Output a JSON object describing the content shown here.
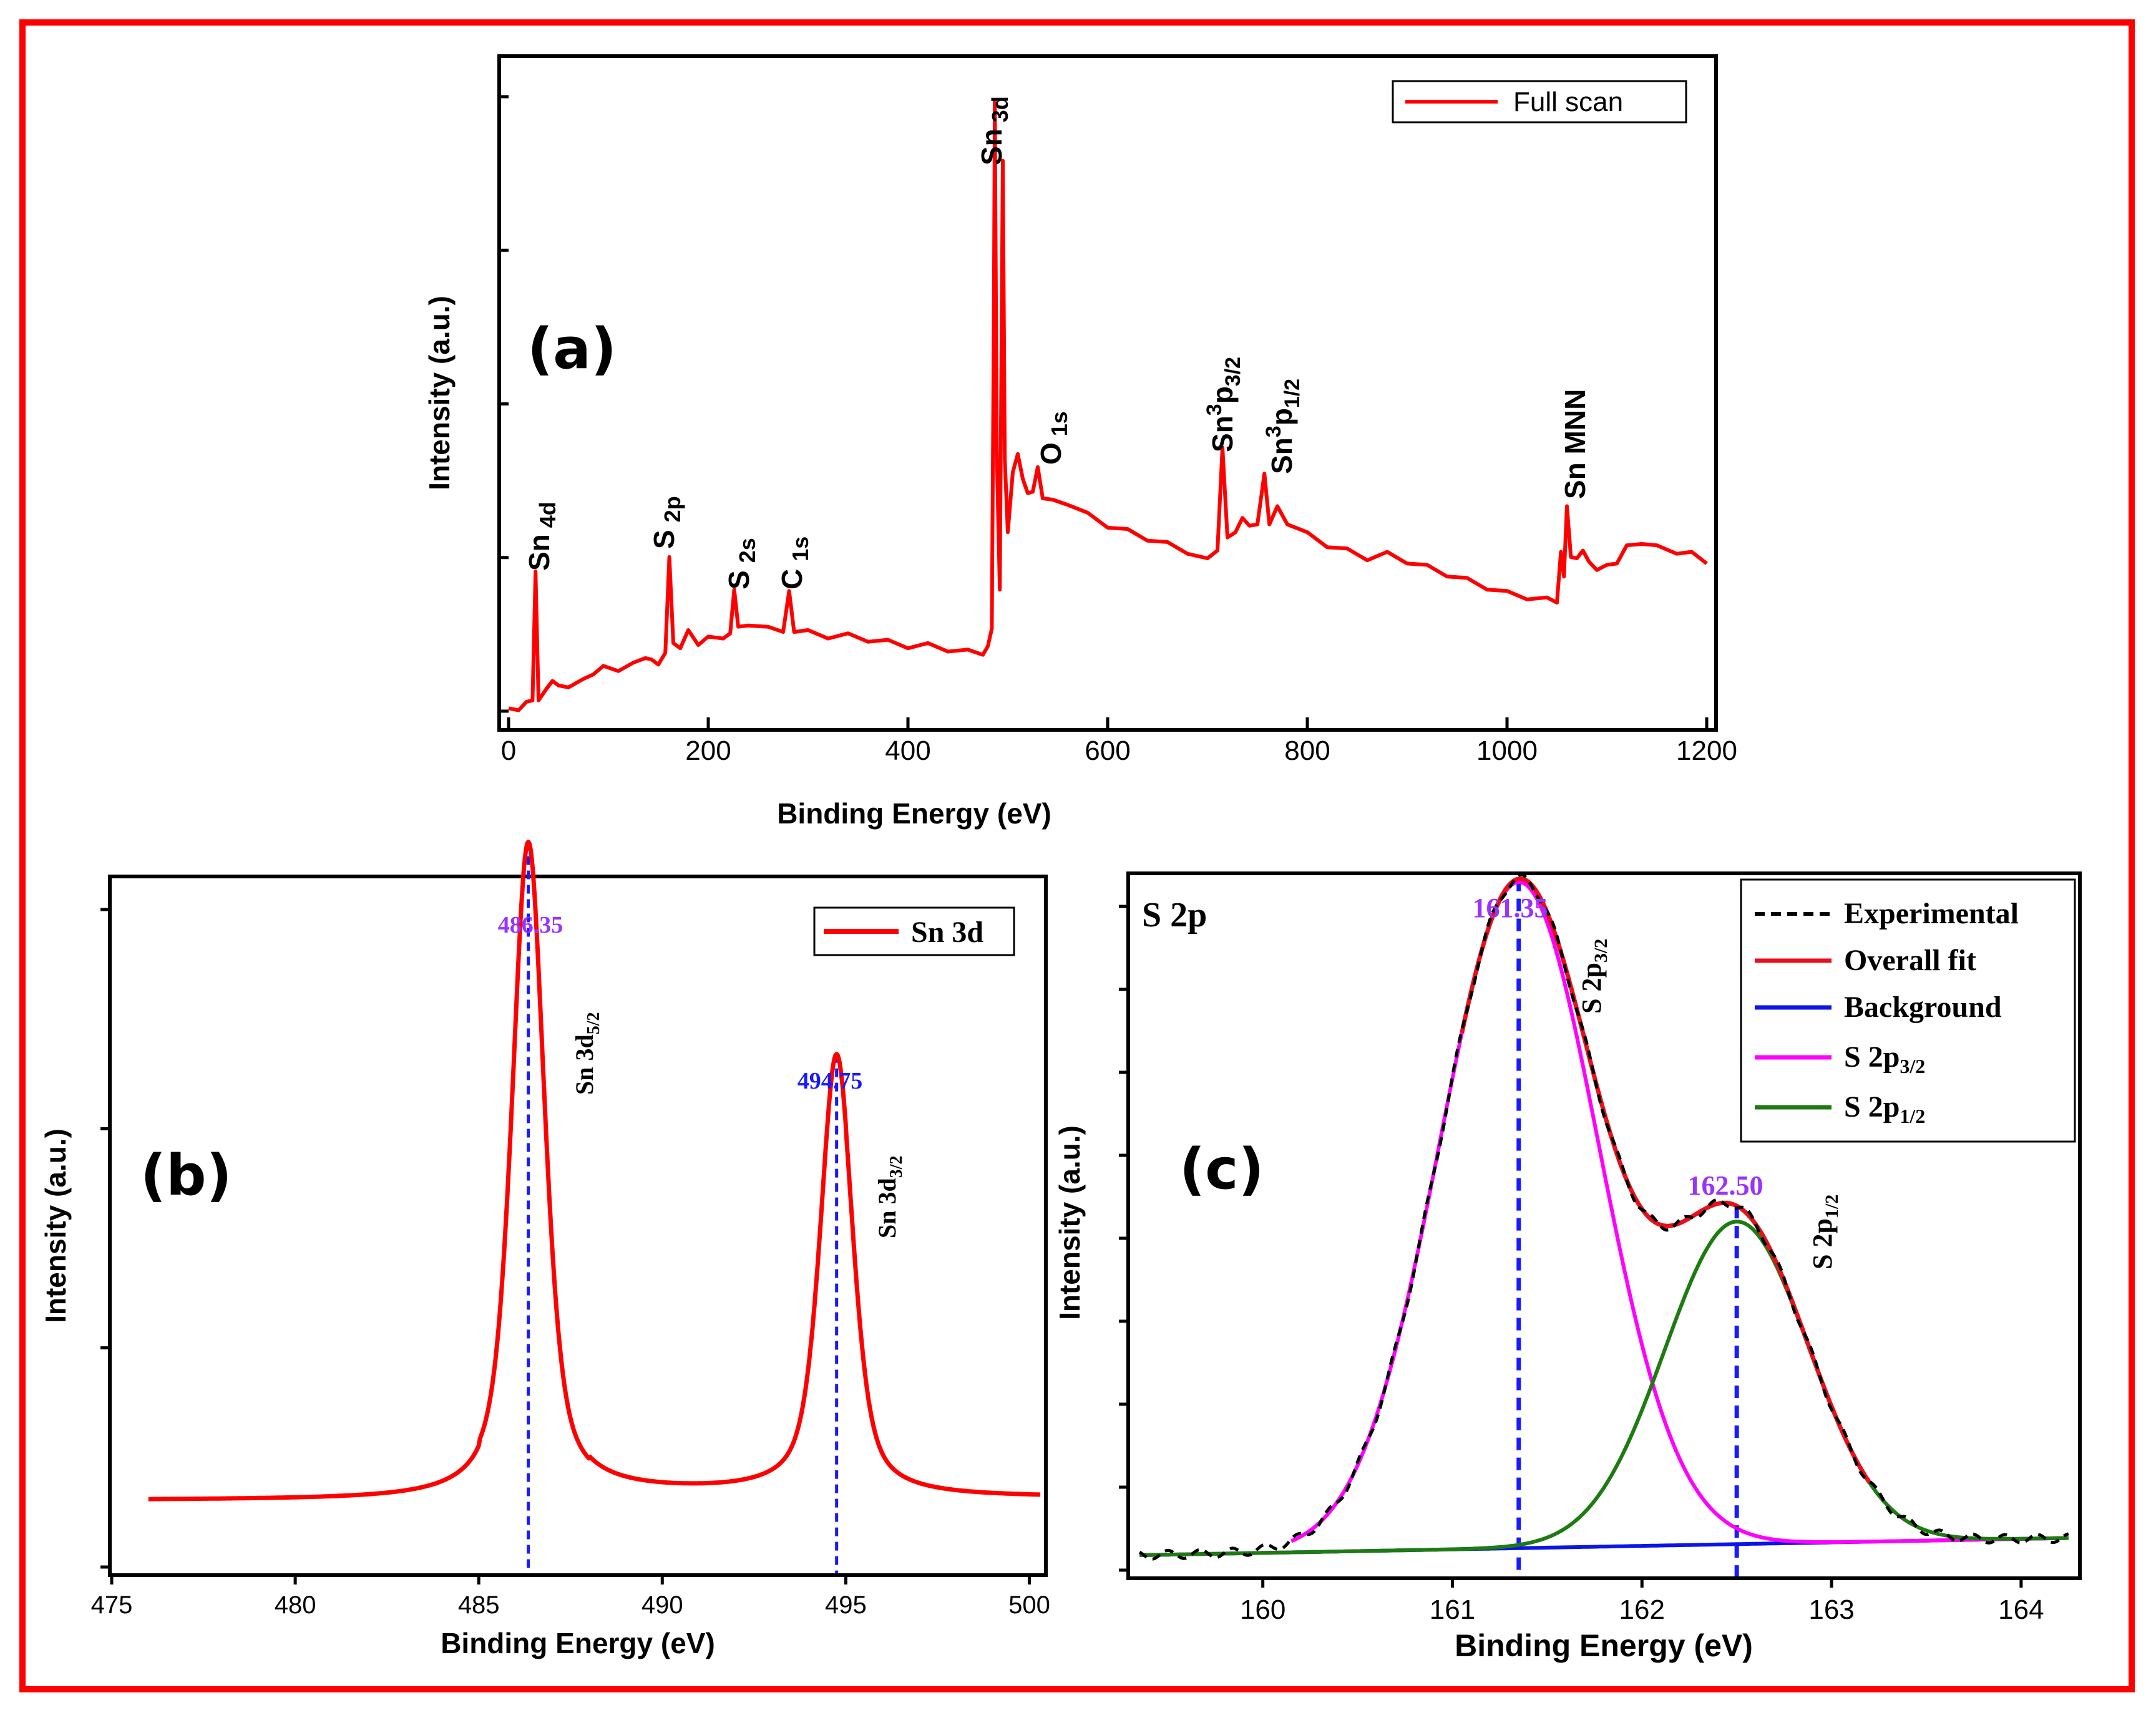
{
  "colors": {
    "frame": "#ff0000",
    "survey_line": "#ff0000",
    "fit_red": "#e8101a",
    "background_blue": "#0b16e6",
    "s2p32_magenta": "#ff00ff",
    "s2p12_green": "#1e7b12",
    "violet_label": "#9933ff",
    "blue_label": "#1a1aff"
  },
  "chart_data": [
    {
      "panel": "(a)",
      "type": "line",
      "xlabel": "Binding Energy (eV)",
      "ylabel": "Intensity (a.u.)",
      "xlim": [
        0,
        1200
      ],
      "ylim": [
        0,
        100
      ],
      "xticks": [
        0,
        200,
        400,
        600,
        800,
        1000,
        1200
      ],
      "yticks_unlabeled": true,
      "legend": {
        "label": "Full scan",
        "position": "top-right"
      },
      "series": [
        {
          "name": "Full scan",
          "points": [
            [
              0,
              1
            ],
            [
              10,
              1.5
            ],
            [
              18,
              2
            ],
            [
              24,
              3
            ],
            [
              27,
              22
            ],
            [
              30,
              3
            ],
            [
              38,
              4
            ],
            [
              44,
              6
            ],
            [
              50,
              4.5
            ],
            [
              60,
              5
            ],
            [
              75,
              5.5
            ],
            [
              85,
              7
            ],
            [
              95,
              7.5
            ],
            [
              110,
              7.5
            ],
            [
              125,
              8
            ],
            [
              137,
              9.5
            ],
            [
              143,
              8.5
            ],
            [
              150,
              8.5
            ],
            [
              157,
              9.5
            ],
            [
              161,
              25
            ],
            [
              165,
              11
            ],
            [
              172,
              11
            ],
            [
              180,
              13
            ],
            [
              190,
              11.5
            ],
            [
              200,
              12
            ],
            [
              215,
              12.5
            ],
            [
              222,
              12.5
            ],
            [
              226,
              20
            ],
            [
              230,
              13.5
            ],
            [
              240,
              14.5
            ],
            [
              260,
              13.5
            ],
            [
              275,
              13.5
            ],
            [
              281,
              19
            ],
            [
              286,
              13.5
            ],
            [
              300,
              13
            ],
            [
              320,
              12.5
            ],
            [
              340,
              12.5
            ],
            [
              360,
              12
            ],
            [
              380,
              11.5
            ],
            [
              400,
              11
            ],
            [
              420,
              11
            ],
            [
              440,
              10.5
            ],
            [
              460,
              10
            ],
            [
              475,
              10
            ],
            [
              480,
              10.5
            ],
            [
              484,
              14
            ],
            [
              486,
              60
            ],
            [
              487,
              95
            ],
            [
              489,
              40
            ],
            [
              492,
              20
            ],
            [
              495,
              85
            ],
            [
              497,
              40
            ],
            [
              500,
              28
            ],
            [
              505,
              38
            ],
            [
              510,
              40
            ],
            [
              515,
              37
            ],
            [
              520,
              34
            ],
            [
              525,
              35
            ],
            [
              530,
              38
            ],
            [
              535,
              34
            ],
            [
              545,
              33
            ],
            [
              560,
              33
            ],
            [
              580,
              31
            ],
            [
              600,
              29.5
            ],
            [
              620,
              28.5
            ],
            [
              640,
              27.5
            ],
            [
              660,
              26.5
            ],
            [
              680,
              25.5
            ],
            [
              700,
              24
            ],
            [
              710,
              26
            ],
            [
              715,
              41
            ],
            [
              720,
              28
            ],
            [
              728,
              28
            ],
            [
              735,
              31
            ],
            [
              742,
              29
            ],
            [
              750,
              30
            ],
            [
              757,
              37
            ],
            [
              762,
              30
            ],
            [
              770,
              32
            ],
            [
              780,
              30
            ],
            [
              800,
              28
            ],
            [
              820,
              26.5
            ],
            [
              840,
              25.5
            ],
            [
              860,
              24.5
            ],
            [
              880,
              25
            ],
            [
              900,
              24
            ],
            [
              920,
              23
            ],
            [
              940,
              22
            ],
            [
              960,
              21
            ],
            [
              980,
              20
            ],
            [
              1000,
              19
            ],
            [
              1020,
              18.5
            ],
            [
              1040,
              18
            ],
            [
              1050,
              18
            ],
            [
              1054,
              25
            ],
            [
              1057,
              22
            ],
            [
              1060,
              32
            ],
            [
              1064,
              25
            ],
            [
              1070,
              24
            ],
            [
              1076,
              26
            ],
            [
              1082,
              23.5
            ],
            [
              1090,
              23
            ],
            [
              1100,
              23
            ],
            [
              1110,
              24
            ],
            [
              1120,
              26
            ],
            [
              1135,
              27
            ],
            [
              1150,
              26
            ],
            [
              1170,
              25.5
            ],
            [
              1185,
              25
            ],
            [
              1200,
              24
            ]
          ]
        }
      ],
      "annotations": [
        "Sn 3d",
        "O 1s",
        "Sn 4d",
        "S 2p",
        "S 2s",
        "C 1s",
        "Sn 3 p 3/2",
        "Sn 3 p 1/2",
        "Sn MNN"
      ]
    },
    {
      "panel": "(b)",
      "type": "line",
      "xlabel": "Binding Energy (eV)",
      "ylabel": "Intensity (a.u.)",
      "xlim": [
        475,
        500.4
      ],
      "ylim": [
        0,
        100
      ],
      "xticks": [
        475,
        480,
        485,
        490,
        495,
        500
      ],
      "yticks_unlabeled": true,
      "legend": {
        "label": "Sn 3d",
        "position": "top-right"
      },
      "series": [
        {
          "name": "Sn 3d",
          "baseline": 10.5,
          "peaks": [
            {
              "center": 486.35,
              "height": 94,
              "width": 0.55,
              "label": "Sn 3d 5/2"
            },
            {
              "center": 494.75,
              "height": 63,
              "width": 0.55,
              "label": "Sn 3d 3/2"
            }
          ]
        }
      ],
      "peak_labels": [
        "486.35",
        "494.75"
      ]
    },
    {
      "panel": "(c)",
      "title": "S 2p",
      "type": "line",
      "xlabel": "Binding Energy (eV)",
      "ylabel": "Intensity (a.u.)",
      "xlim": [
        159.3,
        164.3
      ],
      "ylim": [
        0,
        100
      ],
      "xticks": [
        160,
        161,
        162,
        163,
        164
      ],
      "yticks_unlabeled": true,
      "legend": {
        "entries": [
          "Experimental",
          "Overall fit",
          "Background",
          "S 2p3/2",
          "S 2p1/2"
        ],
        "position": "top-right"
      },
      "series": [
        {
          "name": "Experimental",
          "style": "dashed"
        },
        {
          "name": "Overall fit"
        },
        {
          "name": "Background",
          "from": [
            159.3,
            3
          ],
          "to": [
            164.3,
            5.5
          ]
        },
        {
          "name": "S 2p3/2",
          "center": 161.35,
          "height": 95,
          "sigma": 0.42
        },
        {
          "name": "S 2p1/2",
          "center": 162.5,
          "height": 46,
          "sigma": 0.38
        }
      ],
      "peak_labels": [
        "161.35",
        "162.50"
      ]
    }
  ],
  "text": {
    "a_panel": "(a)",
    "b_panel": "(b)",
    "c_panel": "(c)",
    "c_title": "S 2p",
    "xlabel": "Binding Energy (eV)",
    "ylabel": "Intensity (a.u.)",
    "a_legend": "Full scan",
    "a_sn3d_main": "Sn",
    "a_sn3d_sub": "3d",
    "a_o1s_main": "O",
    "a_o1s_sub": "1s",
    "a_sn4d_main": "Sn",
    "a_sn4d_sub": "4d",
    "a_s2p_main": "S",
    "a_s2p_sub": "2p",
    "a_s2s_main": "S",
    "a_s2s_sub": "2s",
    "a_c1s_main": "C",
    "a_c1s_sub": "1s",
    "a_sn3p32_main": "Sn",
    "a_sn3p_sup": "3",
    "a_sn3p_p": "p",
    "a_sn3p32_sub": "3/2",
    "a_sn3p12_main": "Sn",
    "a_sn3p12_sub": "1/2",
    "a_snmnn": "Sn MNN",
    "b_legend": "Sn 3d",
    "b_peak1_value": "486.35",
    "b_peak2_value": "494.75",
    "b_peak1_main": "Sn 3d",
    "b_peak1_sub": "5/2",
    "b_peak2_main": "Sn 3d",
    "b_peak2_sub": "3/2",
    "c_peak1_value": "161.35",
    "c_peak2_value": "162.50",
    "c_peak1_main": "S 2p",
    "c_peak1_sub": "3/2",
    "c_peak2_main": "S 2p",
    "c_peak2_sub": "1/2",
    "c_leg_exp": "Experimental",
    "c_leg_fit": "Overall fit",
    "c_leg_bg": "Background",
    "c_leg_p32_main": "S 2p",
    "c_leg_p32_sub": "3/2",
    "c_leg_p12_main": "S 2p",
    "c_leg_p12_sub": "1/2"
  }
}
